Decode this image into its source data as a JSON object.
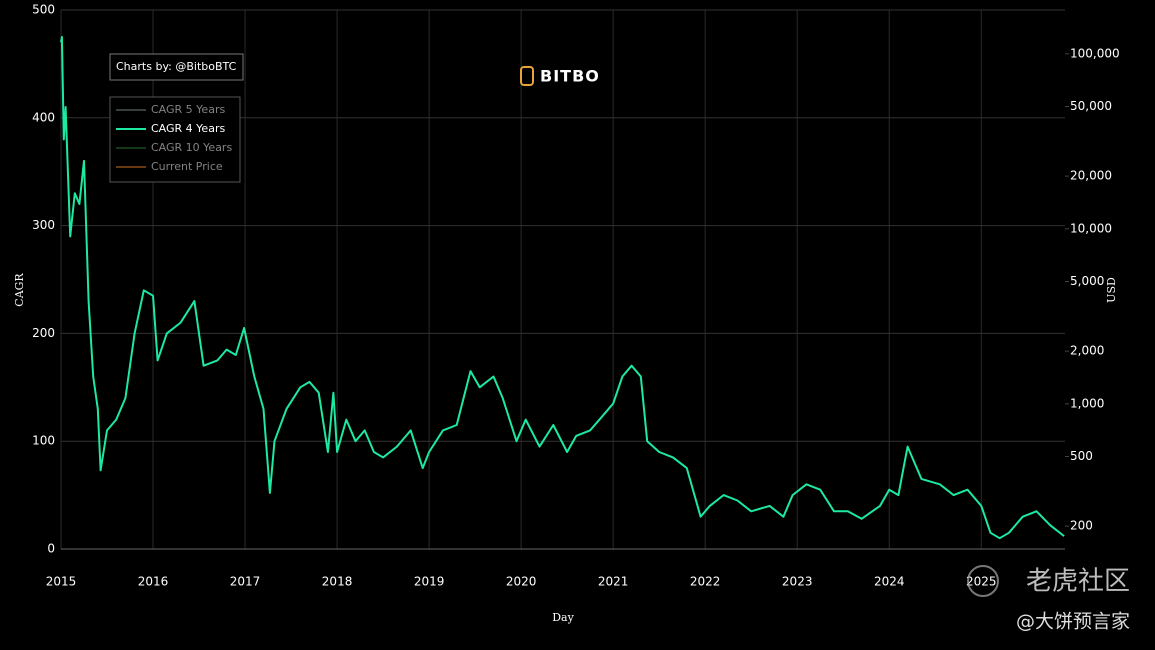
{
  "chart_data": {
    "type": "line",
    "annotation": "Charts by: @BitboBTC",
    "logo": "BITBO",
    "watermark": "老虎社区",
    "author": "@大饼预言家",
    "xlabel": "Day",
    "ylabel": "CAGR",
    "y2label": "USD",
    "grid": true,
    "legend": "top-left",
    "y2log": true,
    "xlim": [
      2015,
      2025.91
    ],
    "xticks": [
      2015,
      2016,
      2017,
      2018,
      2019,
      2020,
      2021,
      2022,
      2023,
      2024,
      2025
    ],
    "ylim": [
      0,
      500
    ],
    "yticks": [
      0,
      100,
      200,
      300,
      400,
      500
    ],
    "y2lim": [
      148,
      178000
    ],
    "y2ticks": [
      200,
      500,
      {
        "value": 1000,
        "label": "1,000"
      },
      {
        "value": 2000,
        "label": "2,000"
      },
      {
        "value": 5000,
        "label": "5,000"
      },
      {
        "value": 10000,
        "label": "10,000"
      },
      {
        "value": 20000,
        "label": "20,000"
      },
      {
        "value": 50000,
        "label": "50,000"
      },
      {
        "value": 100000,
        "label": "100,000"
      }
    ],
    "x": [
      2015.0,
      2015.01,
      2015.03,
      2015.05,
      2015.1,
      2015.15,
      2015.2,
      2015.25,
      2015.3,
      2015.35,
      2015.4,
      2015.43,
      2015.5,
      2015.6,
      2015.7,
      2015.8,
      2015.9,
      2016.0,
      2016.05,
      2016.15,
      2016.3,
      2016.45,
      2016.55,
      2016.7,
      2016.8,
      2016.9,
      2016.99,
      2017.1,
      2017.2,
      2017.27,
      2017.32,
      2017.45,
      2017.6,
      2017.7,
      2017.8,
      2017.9,
      2017.96,
      2018.0,
      2018.1,
      2018.2,
      2018.3,
      2018.4,
      2018.5,
      2018.65,
      2018.8,
      2018.93,
      2019.0,
      2019.15,
      2019.3,
      2019.45,
      2019.55,
      2019.7,
      2019.8,
      2019.95,
      2020.05,
      2020.2,
      2020.35,
      2020.5,
      2020.6,
      2020.75,
      2020.9,
      2021.0,
      2021.1,
      2021.2,
      2021.3,
      2021.37,
      2021.5,
      2021.65,
      2021.8,
      2021.95,
      2022.05,
      2022.2,
      2022.35,
      2022.5,
      2022.7,
      2022.85,
      2022.95,
      2023.1,
      2023.25,
      2023.4,
      2023.55,
      2023.7,
      2023.9,
      2024.0,
      2024.1,
      2024.2,
      2024.35,
      2024.55,
      2024.7,
      2024.85,
      2025.0,
      2025.1,
      2025.2,
      2025.3,
      2025.45,
      2025.6,
      2025.75,
      2025.9
    ],
    "series": [
      {
        "name": "CAGR 5 Years",
        "color": "#7f8c8d",
        "visible": false
      },
      {
        "name": "CAGR 4 Years",
        "color": "#1de9a0",
        "visible": true,
        "values": [
          470,
          475,
          380,
          410,
          290,
          330,
          320,
          360,
          230,
          160,
          130,
          73,
          110,
          120,
          140,
          200,
          240,
          235,
          175,
          200,
          210,
          230,
          170,
          175,
          185,
          180,
          205,
          160,
          130,
          52,
          100,
          130,
          150,
          155,
          145,
          90,
          145,
          90,
          120,
          100,
          110,
          90,
          85,
          95,
          110,
          75,
          90,
          110,
          115,
          165,
          150,
          160,
          140,
          100,
          120,
          95,
          115,
          90,
          105,
          110,
          125,
          135,
          160,
          170,
          160,
          100,
          90,
          85,
          75,
          30,
          40,
          50,
          45,
          35,
          40,
          30,
          50,
          60,
          55,
          35,
          35,
          28,
          40,
          55,
          50,
          95,
          65,
          60,
          50,
          55,
          40,
          15,
          10,
          15,
          30,
          35,
          22,
          12
        ]
      },
      {
        "name": "CAGR 10 Years",
        "color": "#2e7d32",
        "visible": false
      },
      {
        "name": "Current Price",
        "color": "#e67e22",
        "visible": false,
        "axis": "y2"
      }
    ]
  }
}
